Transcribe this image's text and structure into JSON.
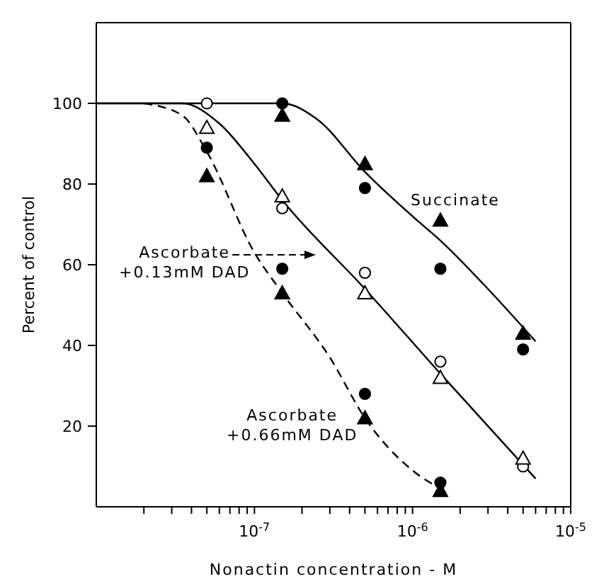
{
  "chart_data": {
    "type": "scatter",
    "xlabel": "Nonactin concentration - M",
    "ylabel": "Percent of control",
    "log": "x",
    "xlim": [
      1e-08,
      1e-05
    ],
    "xticks": [
      {
        "value": 2e-08,
        "label": null
      },
      {
        "value": 3e-08,
        "label": null
      },
      {
        "value": 4e-08,
        "label": null
      },
      {
        "value": 5e-08,
        "label": null
      },
      {
        "value": 6e-08,
        "label": null
      },
      {
        "value": 7e-08,
        "label": null
      },
      {
        "value": 8e-08,
        "label": null
      },
      {
        "value": 9e-08,
        "label": null
      },
      {
        "value": 1e-07,
        "label": "10$^{-7}$"
      },
      {
        "value": 2e-07,
        "label": null
      },
      {
        "value": 3e-07,
        "label": null
      },
      {
        "value": 4e-07,
        "label": null
      },
      {
        "value": 5e-07,
        "label": null
      },
      {
        "value": 6e-07,
        "label": null
      },
      {
        "value": 7e-07,
        "label": null
      },
      {
        "value": 8e-07,
        "label": null
      },
      {
        "value": 9e-07,
        "label": null
      },
      {
        "value": 1e-06,
        "label": "10$^{-6}$"
      },
      {
        "value": 2e-06,
        "label": null
      },
      {
        "value": 3e-06,
        "label": null
      },
      {
        "value": 4e-06,
        "label": null
      },
      {
        "value": 5e-06,
        "label": null
      },
      {
        "value": 6e-06,
        "label": null
      },
      {
        "value": 7e-06,
        "label": null
      },
      {
        "value": 8e-06,
        "label": null
      },
      {
        "value": 9e-06,
        "label": null
      },
      {
        "value": 1e-05,
        "label": "10$^{-5}$"
      }
    ],
    "ylim": [
      0,
      120
    ],
    "yticks": [
      20,
      40,
      60,
      80,
      100
    ],
    "grid": false,
    "legend": false,
    "annotations": [
      "Succinate",
      "Ascorbate\n+0.13mM DAD",
      "Ascorbate\n+0.66mM DAD"
    ],
    "series": [
      {
        "marker": "circle",
        "color": "#000000",
        "x": [
          5e-08,
          1.5e-07,
          1.5e-07,
          5e-07,
          5e-07,
          1.5e-06,
          1.5e-06,
          5e-06
        ],
        "values": [
          89,
          100,
          59,
          79,
          28,
          59,
          6,
          39
        ]
      },
      {
        "marker": "circle",
        "color": "#ffffff",
        "x": [
          5e-08,
          1.5e-07,
          5e-07,
          1.5e-06,
          5e-06
        ],
        "values": [
          100,
          74,
          58,
          36,
          10
        ]
      },
      {
        "marker": "triangle",
        "color": "#000000",
        "x": [
          5e-08,
          1.5e-07,
          1.5e-07,
          5e-07,
          5e-07,
          1.5e-06,
          1.5e-06,
          5e-06
        ],
        "values": [
          82,
          97,
          53,
          85,
          22,
          71,
          4,
          43
        ]
      },
      {
        "marker": "triangle",
        "color": "#ffffff",
        "x": [
          5e-08,
          1.5e-07,
          5e-07,
          1.5e-06,
          5e-06
        ],
        "values": [
          94,
          77,
          53,
          32,
          12
        ]
      },
      {
        "type": "line",
        "line_style": "solid",
        "color": "#000000",
        "x": [
          1e-08,
          1.5e-07,
          2.5e-07,
          5e-07,
          1e-06,
          1.5e-06,
          3e-06,
          6e-06
        ],
        "values": [
          100,
          100,
          96,
          83,
          72,
          66,
          54,
          41
        ]
      },
      {
        "type": "line",
        "line_style": "solid",
        "color": "#000000",
        "x": [
          1e-08,
          3.5e-08,
          6e-08,
          1e-07,
          1.5e-07,
          5e-07,
          1.5e-06,
          6e-06
        ],
        "values": [
          100,
          100,
          95,
          85,
          76,
          54,
          33,
          7
        ]
      },
      {
        "type": "line",
        "line_style": "dashed",
        "color": "#000000",
        "x": [
          2e-08,
          3.5e-08,
          5e-08,
          1e-07,
          1.5e-07,
          3e-07,
          5e-07,
          1e-06,
          1.6e-06
        ],
        "values": [
          100,
          97,
          88,
          63,
          53,
          37,
          22,
          9,
          4
        ]
      }
    ]
  }
}
